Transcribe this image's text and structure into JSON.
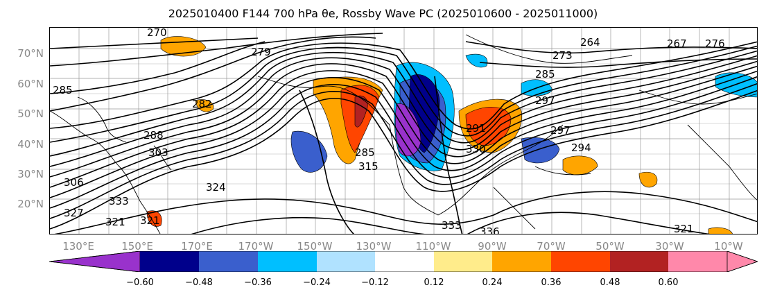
{
  "title": "2025010400 F144 700 hPa θe, Rossby Wave PC (2025010600 - 2025011000)",
  "map": {
    "lat_labels": [
      "70°N",
      "60°N",
      "50°N",
      "40°N",
      "30°N",
      "20°N"
    ],
    "lon_labels": [
      "130°E",
      "150°E",
      "170°E",
      "170°W",
      "150°W",
      "130°W",
      "110°W",
      "90°W",
      "70°W",
      "50°W",
      "30°W",
      "10°W"
    ],
    "contour_labels": [
      "270",
      "279",
      "282",
      "285",
      "288",
      "285",
      "306",
      "303",
      "297",
      "333",
      "321",
      "324",
      "327",
      "321",
      "330",
      "285",
      "294",
      "291",
      "297",
      "264",
      "267",
      "276",
      "273",
      "315",
      "333",
      "336",
      "321"
    ],
    "colors": {
      "contour": "#000000",
      "coast": "#000000",
      "grid": "#808080"
    }
  },
  "colorbar": {
    "ticks": [
      "−0.60",
      "−0.48",
      "−0.36",
      "−0.24",
      "−0.12",
      "0.12",
      "0.24",
      "0.36",
      "0.48",
      "0.60"
    ],
    "colors": [
      "#9932cc",
      "#00008b",
      "#3a5fcd",
      "#00bfff",
      "#b0e2ff",
      "#ffffff",
      "#ffec8b",
      "#ffa500",
      "#ff4500",
      "#b22222",
      "#ff88aa"
    ]
  }
}
